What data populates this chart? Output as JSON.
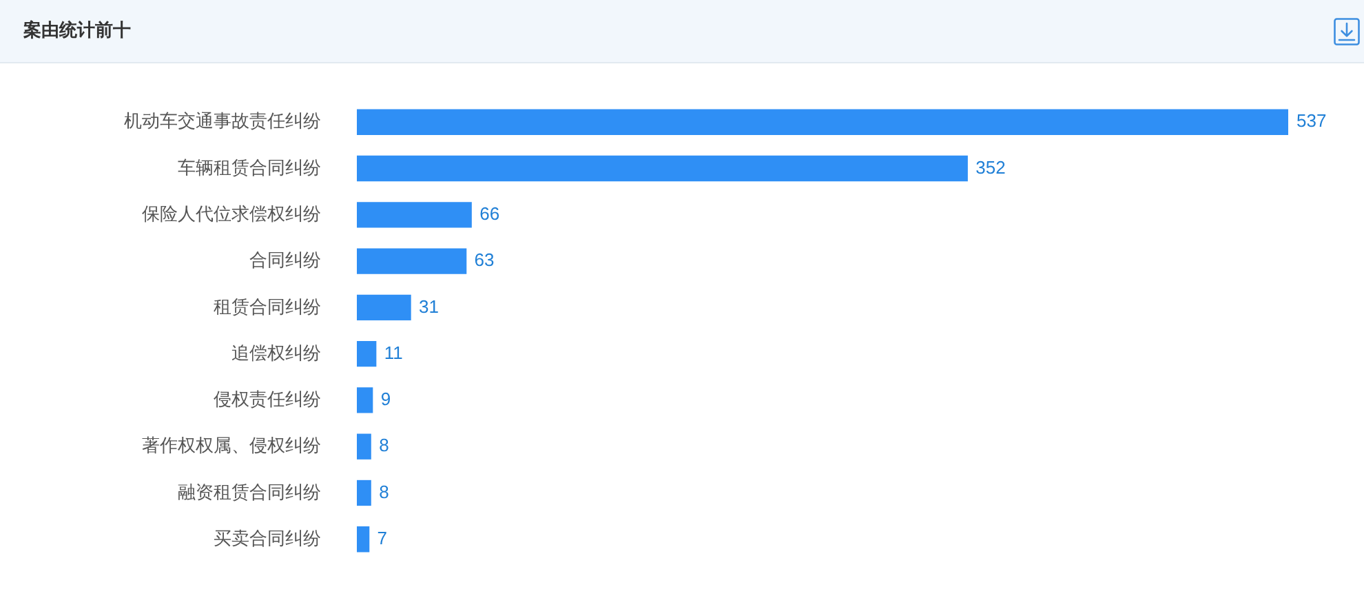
{
  "chart_data": {
    "type": "bar",
    "title": "案由统计前十",
    "orientation": "horizontal",
    "categories": [
      "机动车交通事故责任纠纷",
      "车辆租赁合同纠纷",
      "保险人代位求偿权纠纷",
      "合同纠纷",
      "租赁合同纠纷",
      "追偿权纠纷",
      "侵权责任纠纷",
      "著作权权属、侵权纠纷",
      "融资租赁合同纠纷",
      "买卖合同纠纷"
    ],
    "values": [
      537,
      352,
      66,
      63,
      31,
      11,
      9,
      8,
      8,
      7
    ],
    "color": "#2f8ff5",
    "data_labels": true,
    "tick_labels": "y"
  }
}
